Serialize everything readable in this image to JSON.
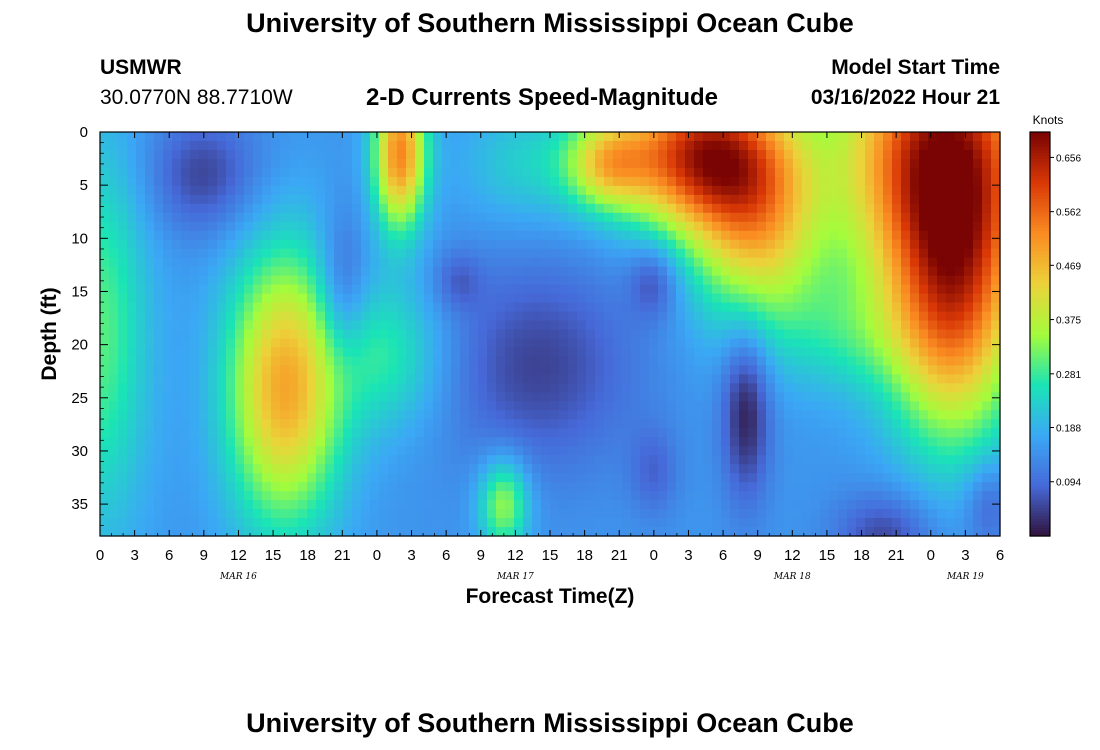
{
  "page": {
    "title_top": "University of Southern Mississippi Ocean Cube",
    "title_bottom": "University of Southern Mississippi Ocean Cube",
    "station_name": "USMWR",
    "station_coords": "30.0770N  88.7710W",
    "model_start_label": "Model Start Time",
    "model_start_value": "03/16/2022 Hour 21"
  },
  "colors": {
    "colormap": [
      "#30123b",
      "#4669d8",
      "#3ba8f5",
      "#1ae4b6",
      "#a4fc3c",
      "#ecd23a",
      "#fa8c22",
      "#d93806",
      "#7a0403"
    ]
  },
  "chart_data": {
    "type": "heatmap",
    "title": "2-D Currents Speed-Magnitude",
    "xlabel": "Forecast Time(Z)",
    "ylabel": "Depth (ft)",
    "x_unit": "hours from 00Z Mar 16",
    "xlim": [
      0,
      78
    ],
    "ylim": [
      0,
      38
    ],
    "y_inverted": true,
    "x_tick_values": [
      0,
      3,
      6,
      9,
      12,
      15,
      18,
      21,
      24,
      27,
      30,
      33,
      36,
      39,
      42,
      45,
      48,
      51,
      54,
      57,
      60,
      63,
      66,
      69,
      72,
      75,
      78
    ],
    "x_tick_labels": [
      "0",
      "3",
      "6",
      "9",
      "12",
      "15",
      "18",
      "21",
      "0",
      "3",
      "6",
      "9",
      "12",
      "15",
      "18",
      "21",
      "0",
      "3",
      "6",
      "9",
      "12",
      "15",
      "18",
      "21",
      "0",
      "3",
      "6"
    ],
    "y_tick_values": [
      0,
      5,
      10,
      15,
      20,
      25,
      30,
      35
    ],
    "y_tick_labels": [
      "0",
      "5",
      "10",
      "15",
      "20",
      "25",
      "30",
      "35"
    ],
    "date_labels": [
      {
        "x": 12,
        "label": "MAR 16"
      },
      {
        "x": 36,
        "label": "MAR 17"
      },
      {
        "x": 60,
        "label": "MAR 18"
      },
      {
        "x": 75,
        "label": "MAR 19"
      }
    ],
    "colorbar": {
      "title": "Knots",
      "min": 0.0,
      "max": 0.7,
      "tick_values": [
        0.656,
        0.562,
        0.469,
        0.375,
        0.281,
        0.188,
        0.094
      ],
      "tick_labels": [
        "0.656",
        "0.562",
        "0.469",
        "0.375",
        "0.281",
        "0.188",
        "0.094"
      ]
    },
    "field": {
      "description": "Current speed (knots) modeled as background plus gaussian features; coordinates in hours and feet",
      "background": 0.15,
      "features": [
        {
          "t": 0,
          "d": 19,
          "st": 3,
          "sd": 13,
          "a": 0.15
        },
        {
          "t": 9,
          "d": 4,
          "st": 3.5,
          "sd": 4,
          "a": -0.1
        },
        {
          "t": 21,
          "d": 15,
          "st": 1.5,
          "sd": 5,
          "a": -0.1
        },
        {
          "t": 16,
          "d": 24,
          "st": 3.5,
          "sd": 9,
          "a": 0.34
        },
        {
          "t": 26,
          "d": 2,
          "st": 1.6,
          "sd": 5,
          "a": 0.38
        },
        {
          "t": 25,
          "d": 21,
          "st": 3.5,
          "sd": 5,
          "a": 0.12
        },
        {
          "t": 38,
          "d": 22,
          "st": 6,
          "sd": 7,
          "a": -0.1
        },
        {
          "t": 31,
          "d": 14,
          "st": 1.5,
          "sd": 2,
          "a": -0.06
        },
        {
          "t": 35,
          "d": 35,
          "st": 1.5,
          "sd": 3,
          "a": 0.2
        },
        {
          "t": 44,
          "d": 3,
          "st": 2.5,
          "sd": 3,
          "a": 0.22
        },
        {
          "t": 37,
          "d": 3,
          "st": 4,
          "sd": 4,
          "a": 0.08
        },
        {
          "t": 48,
          "d": 14,
          "st": 1.5,
          "sd": 2.5,
          "a": -0.09
        },
        {
          "t": 48,
          "d": 32,
          "st": 1.5,
          "sd": 3,
          "a": -0.06
        },
        {
          "t": 52,
          "d": 2,
          "st": 5,
          "sd": 5,
          "a": 0.46
        },
        {
          "t": 57,
          "d": 9,
          "st": 4,
          "sd": 7,
          "a": 0.28
        },
        {
          "t": 56,
          "d": 26,
          "st": 1.5,
          "sd": 6,
          "a": -0.14
        },
        {
          "t": 73,
          "d": 2,
          "st": 6,
          "sd": 9,
          "a": 0.5
        },
        {
          "t": 74,
          "d": 17,
          "st": 4,
          "sd": 9,
          "a": 0.35
        },
        {
          "t": 65,
          "d": 19,
          "st": 4,
          "sd": 4,
          "a": 0.08
        },
        {
          "t": 68,
          "d": 38,
          "st": 3,
          "sd": 3,
          "a": -0.1
        },
        {
          "t": 77,
          "d": 35,
          "st": 1.5,
          "sd": 3,
          "a": -0.08
        }
      ]
    }
  }
}
